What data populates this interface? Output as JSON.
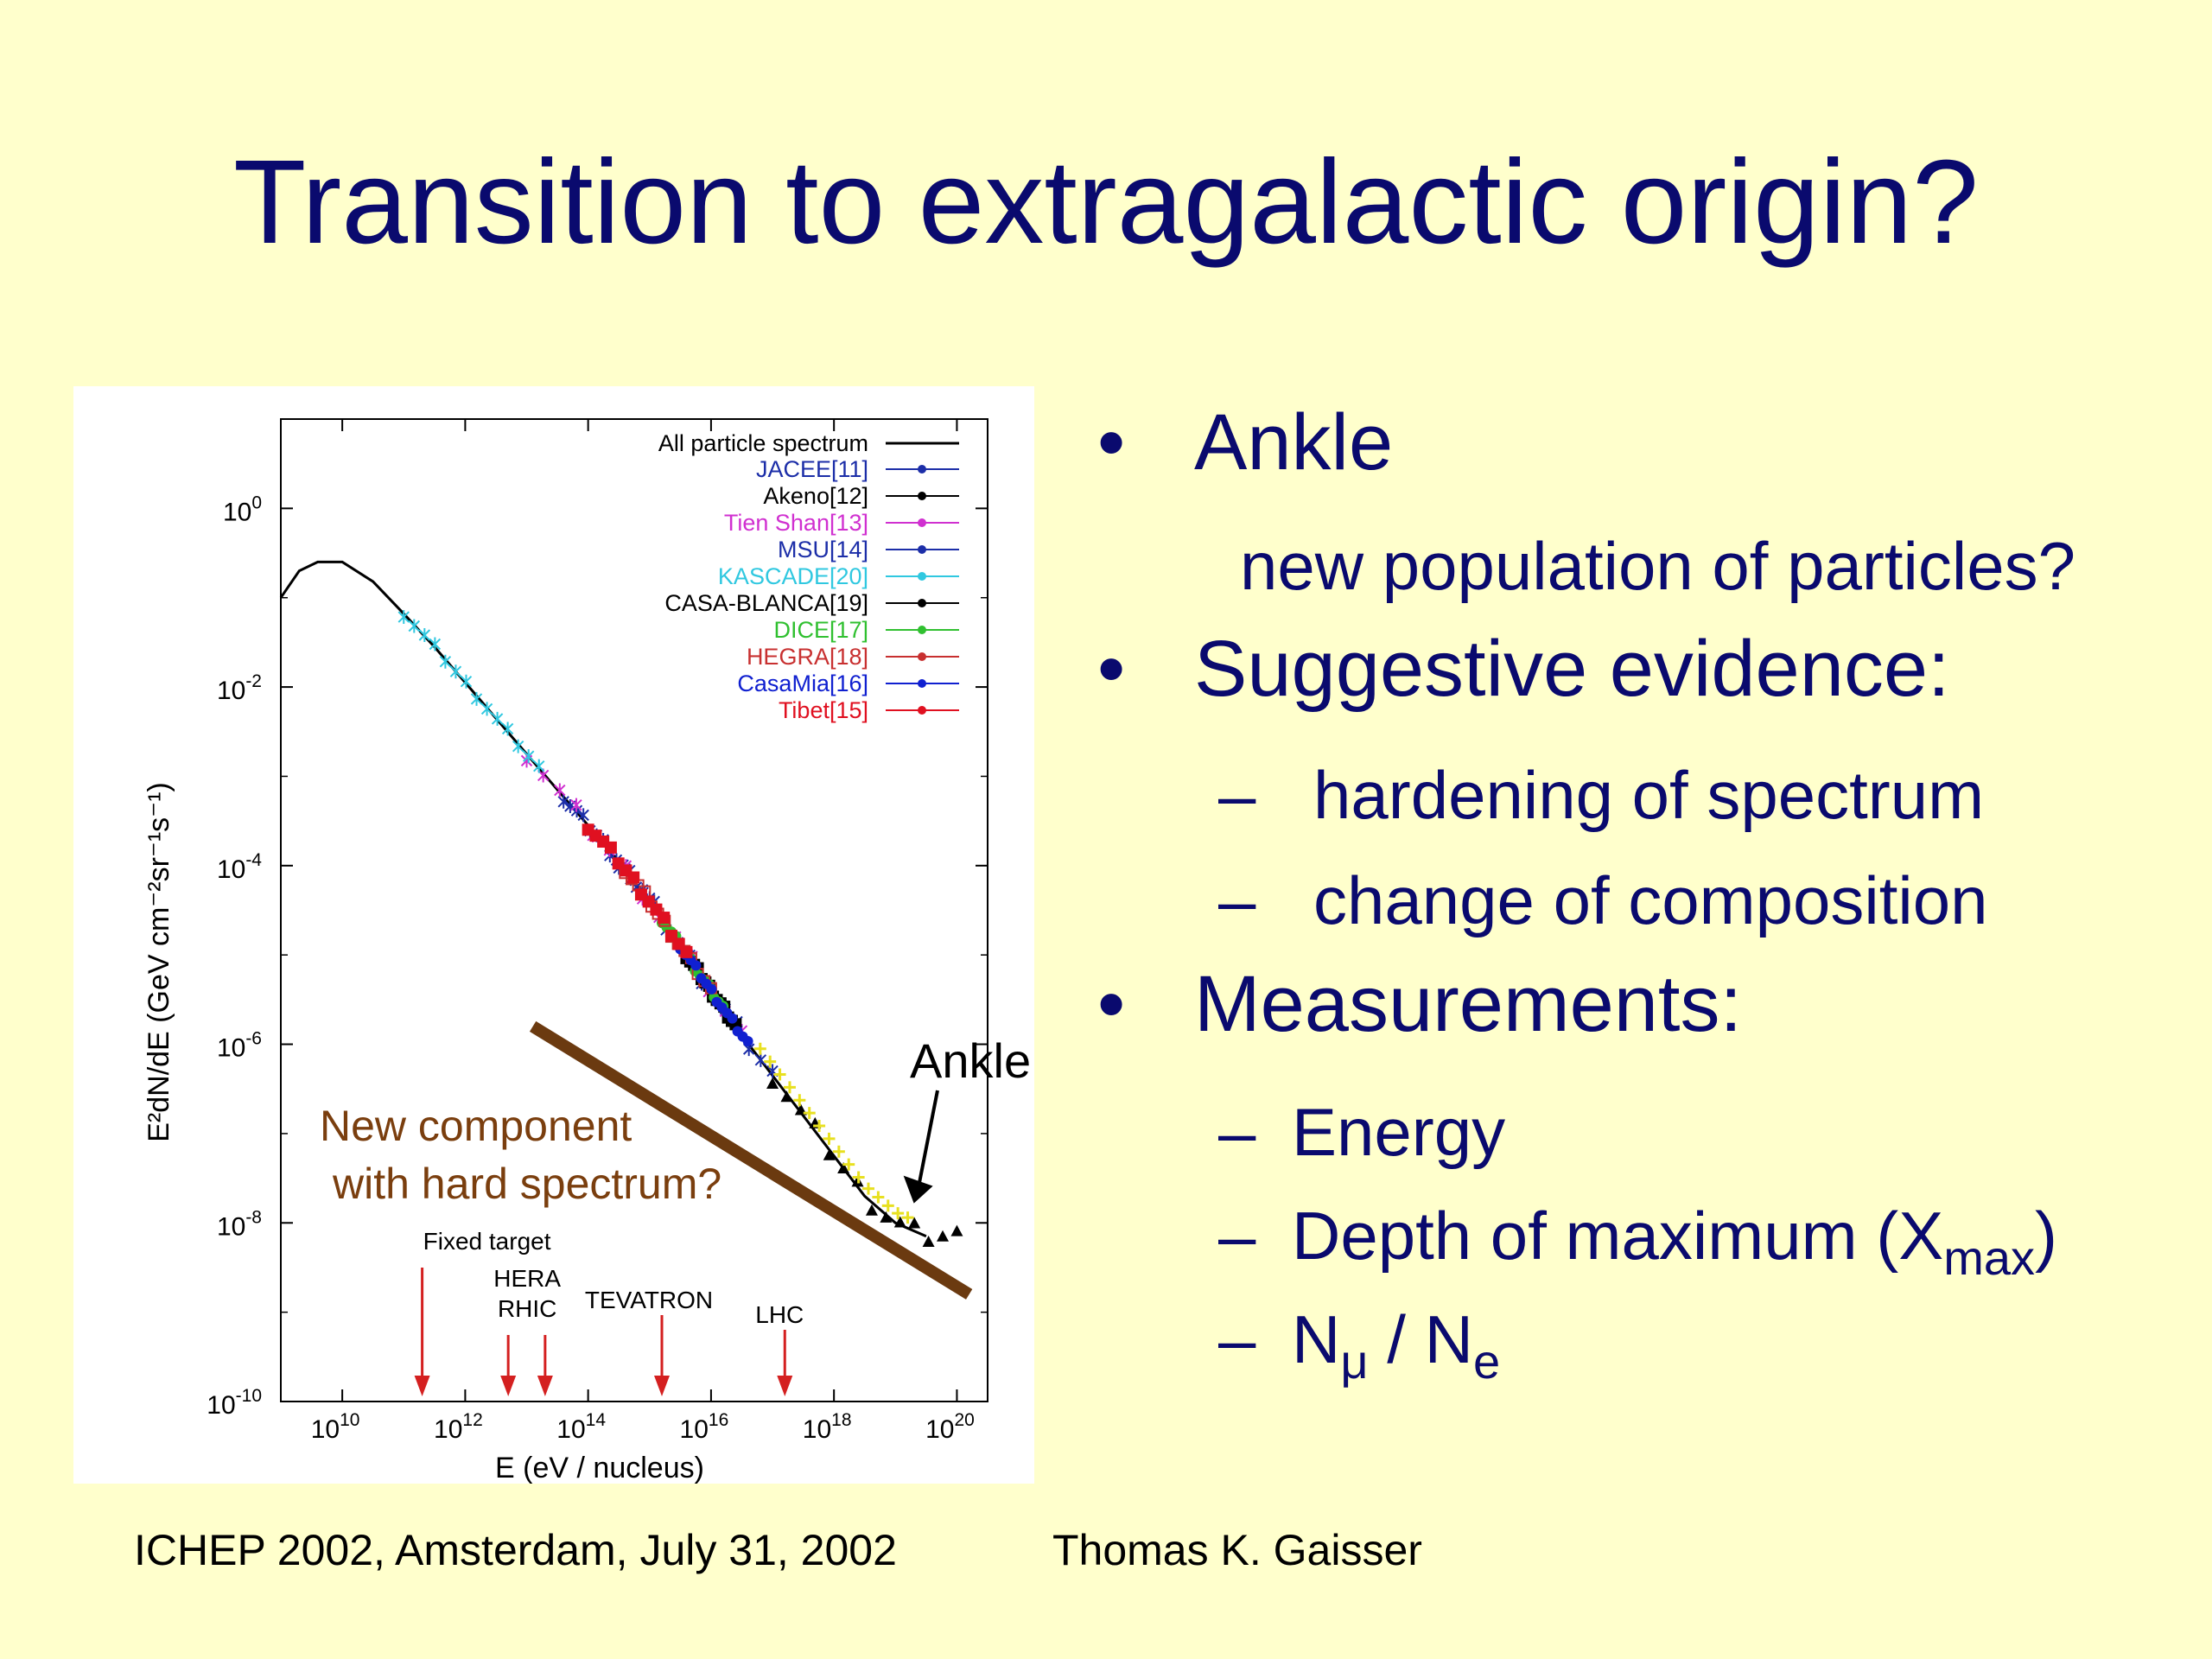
{
  "slide": {
    "title": "Transition to extragalactic origin?",
    "footer_left": "ICHEP 2002, Amsterdam, July 31, 2002",
    "footer_right": "Thomas K. Gaisser",
    "colors": {
      "title": "#0a0a6e",
      "background": "#ffffcc",
      "overlay_line": "#6b3a10",
      "overlay_text": "#7a3e0e",
      "accelerator_arrows": "#d42020"
    }
  },
  "bullets": {
    "b1": "Ankle",
    "b1_sub": "new population of particles?",
    "b2": "Suggestive evidence:",
    "b2_a": "hardening of spectrum",
    "b2_b": "change of composition",
    "b3": "Measurements:",
    "b3_a": "Energy",
    "b3_b_main": "Depth of maximum (X",
    "b3_b_sub": "max",
    "b3_b_end": ")",
    "b3_c_n1": "N",
    "b3_c_mu": "μ",
    "b3_c_mid": " / N",
    "b3_c_e": "e",
    "bullet_symbol": "•",
    "dash_symbol": "–"
  },
  "chart_data": {
    "type": "scatter",
    "xlabel_main": "E",
    "xlabel_unit": "(eV / nucleus)",
    "ylabel_main": "E²dN/dE",
    "ylabel_unit": "(GeV cm⁻²sr⁻¹s⁻¹)",
    "x_log_range": [
      9,
      20.5
    ],
    "y_log_range": [
      -10,
      1
    ],
    "x_ticks": [
      {
        "exp": 10,
        "base": "10",
        "sup": "10"
      },
      {
        "exp": 12,
        "base": "10",
        "sup": "12"
      },
      {
        "exp": 14,
        "base": "10",
        "sup": "14"
      },
      {
        "exp": 16,
        "base": "10",
        "sup": "16"
      },
      {
        "exp": 18,
        "base": "10",
        "sup": "18"
      },
      {
        "exp": 20,
        "base": "10",
        "sup": "20"
      }
    ],
    "y_ticks": [
      {
        "exp": 0,
        "base": "10",
        "sup": "0"
      },
      {
        "exp": -2,
        "base": "10",
        "sup": "-2"
      },
      {
        "exp": -4,
        "base": "10",
        "sup": "-4"
      },
      {
        "exp": -6,
        "base": "10",
        "sup": "-6"
      },
      {
        "exp": -8,
        "base": "10",
        "sup": "-8"
      },
      {
        "exp": -10,
        "base": "10",
        "sup": "-10"
      }
    ],
    "all_particle_spectrum": {
      "name": "All particle spectrum",
      "log_x": [
        9.0,
        9.3,
        9.6,
        10.0,
        10.5,
        11.0,
        11.5,
        12.0,
        12.5,
        13.0,
        13.5,
        14.0,
        14.5,
        15.0,
        15.5,
        16.0,
        16.5,
        17.0,
        17.5,
        18.0,
        18.5,
        19.0,
        19.5
      ],
      "log_y": [
        -1.0,
        -0.7,
        -0.6,
        -0.6,
        -0.82,
        -1.18,
        -1.55,
        -1.95,
        -2.35,
        -2.75,
        -3.15,
        -3.55,
        -3.95,
        -4.4,
        -4.9,
        -5.4,
        -5.9,
        -6.35,
        -6.8,
        -7.25,
        -7.7,
        -8.0,
        -8.15
      ]
    },
    "legend": [
      {
        "name": "JACEE[11]",
        "color": "#1c2ea8",
        "marker": "x"
      },
      {
        "name": "Akeno[12]",
        "color": "#000000",
        "marker": "triangle"
      },
      {
        "name": "Tien Shan[13]",
        "color": "#d030d0",
        "marker": "star"
      },
      {
        "name": "MSU[14]",
        "color": "#1c2ea8",
        "marker": "star"
      },
      {
        "name": "KASCADE[20]",
        "color": "#30c8e0",
        "marker": "star"
      },
      {
        "name": "CASA-BLANCA[19]",
        "color": "#000000",
        "marker": "filled-square"
      },
      {
        "name": "DICE[17]",
        "color": "#30c030",
        "marker": "filled-diamond"
      },
      {
        "name": "HEGRA[18]",
        "color": "#c83030",
        "marker": "open-square"
      },
      {
        "name": "CasaMia[16]",
        "color": "#1020d0",
        "marker": "filled-circle"
      },
      {
        "name": "Tibet[15]",
        "color": "#e01020",
        "marker": "filled-square"
      }
    ],
    "accelerators": [
      {
        "name": "Fixed target",
        "log_x": 11.3
      },
      {
        "name": "HERA",
        "log_x": 12.7
      },
      {
        "name": "RHIC",
        "log_x": 13.3
      },
      {
        "name": "TEVATRON",
        "log_x": 15.2
      },
      {
        "name": "LHC",
        "log_x": 17.2
      }
    ],
    "ankle_label": "Ankle",
    "ankle_point": {
      "log_x": 19.3,
      "log_y": -7.8
    },
    "new_component": {
      "label_line1": "New component",
      "label_line2": "with hard spectrum?",
      "line_start": {
        "log_x": 13.1,
        "log_y": -5.8
      },
      "line_end": {
        "log_x": 20.2,
        "log_y": -8.8
      }
    }
  }
}
